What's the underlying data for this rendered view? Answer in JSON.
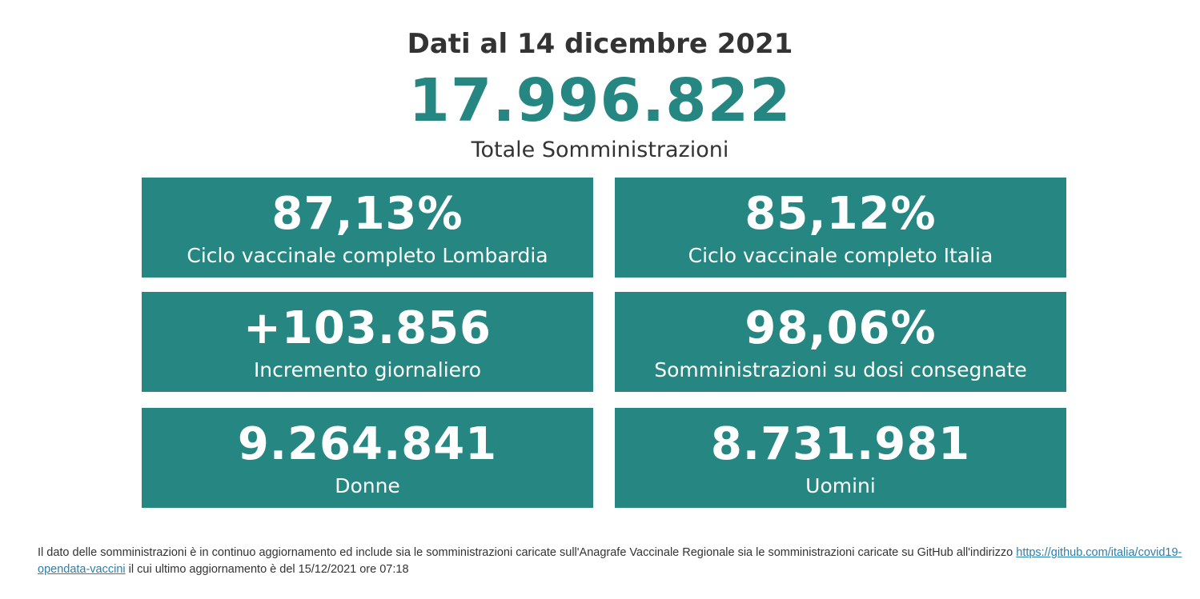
{
  "header": {
    "date_title": "Dati al 14 dicembre 2021",
    "total_value": "17.996.822",
    "total_label": "Totale Somministrazioni"
  },
  "cards": [
    {
      "value": "87,13%",
      "label": "Ciclo vaccinale completo Lombardia"
    },
    {
      "value": "85,12%",
      "label": "Ciclo vaccinale completo Italia"
    },
    {
      "value": "+103.856",
      "label": "Incremento giornaliero"
    },
    {
      "value": "98,06%",
      "label": "Somministrazioni su dosi consegnate"
    },
    {
      "value": "9.264.841",
      "label": "Donne"
    },
    {
      "value": "8.731.981",
      "label": "Uomini"
    }
  ],
  "footer": {
    "text_before": "Il dato delle somministrazioni è in continuo aggiornamento ed include sia le somministrazioni caricate sull'Anagrafe Vaccinale Regionale sia le somministrazioni caricate su GitHub all'indirizzo ",
    "link_text": "https://github.com/italia/covid19-opendata-vaccini",
    "text_after": " il cui ultimo aggiornamento è del 15/12/2021 ore 07:18"
  },
  "colors": {
    "accent": "#268782",
    "text": "#333333",
    "link": "#2a7fb0"
  }
}
